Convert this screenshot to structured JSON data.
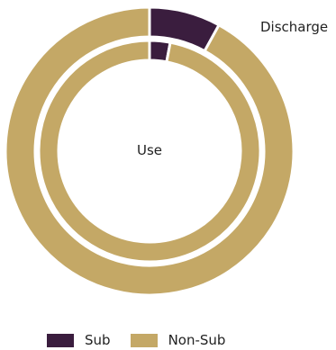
{
  "chart_data": {
    "type": "pie",
    "variant": "nested-donut",
    "rings": [
      {
        "name": "Discharge",
        "position": "outer",
        "slices": [
          {
            "label": "Sub",
            "value": 8
          },
          {
            "label": "Non-Sub",
            "value": 92
          }
        ]
      },
      {
        "name": "Use",
        "position": "inner",
        "slices": [
          {
            "label": "Sub",
            "value": 3
          },
          {
            "label": "Non-Sub",
            "value": 97
          }
        ]
      }
    ],
    "legend": {
      "placement": "bottom",
      "entries": [
        {
          "label": "Sub",
          "color": "#3a1d3e"
        },
        {
          "label": "Non-Sub",
          "color": "#c4a866"
        }
      ]
    },
    "colors": {
      "Sub": "#3a1d3e",
      "Non-Sub": "#c4a866"
    }
  }
}
